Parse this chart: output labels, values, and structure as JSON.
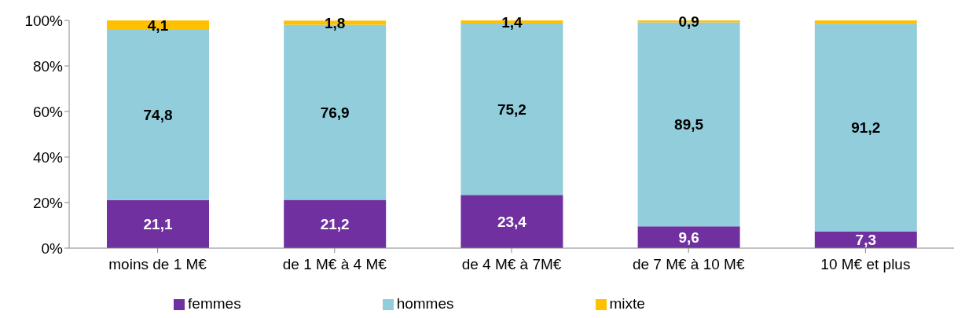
{
  "chart_data": {
    "type": "bar",
    "stacked": true,
    "categories": [
      "moins de 1 M€",
      "de 1 M€ à 4 M€",
      "de 4 M€ à 7M€",
      "de 7 M€ à 10 M€",
      "10 M€ et plus"
    ],
    "series": [
      {
        "name": "femmes",
        "color": "#7030a0",
        "values": [
          21.1,
          21.2,
          23.4,
          9.6,
          7.3
        ],
        "value_labels": [
          "21,1",
          "21,2",
          "23,4",
          "9,6",
          "7,3"
        ]
      },
      {
        "name": "hommes",
        "color": "#92cddc",
        "values": [
          74.8,
          76.9,
          75.2,
          89.5,
          91.2
        ],
        "value_labels": [
          "74,8",
          "76,9",
          "75,2",
          "89,5",
          "91,2"
        ]
      },
      {
        "name": "mixte",
        "color": "#ffc000",
        "values": [
          4.1,
          1.8,
          1.4,
          0.9,
          1.5
        ],
        "value_labels": [
          "4,1",
          "1,8",
          "1,4",
          "0,9",
          null
        ]
      }
    ],
    "ylim": [
      0,
      100
    ],
    "yticks": [
      {
        "value": 0,
        "label": "0%"
      },
      {
        "value": 20,
        "label": "20%"
      },
      {
        "value": 40,
        "label": "40%"
      },
      {
        "value": 60,
        "label": "60%"
      },
      {
        "value": 80,
        "label": "80%"
      },
      {
        "value": 100,
        "label": "100%"
      }
    ],
    "grid": false,
    "legend": "bottom"
  }
}
